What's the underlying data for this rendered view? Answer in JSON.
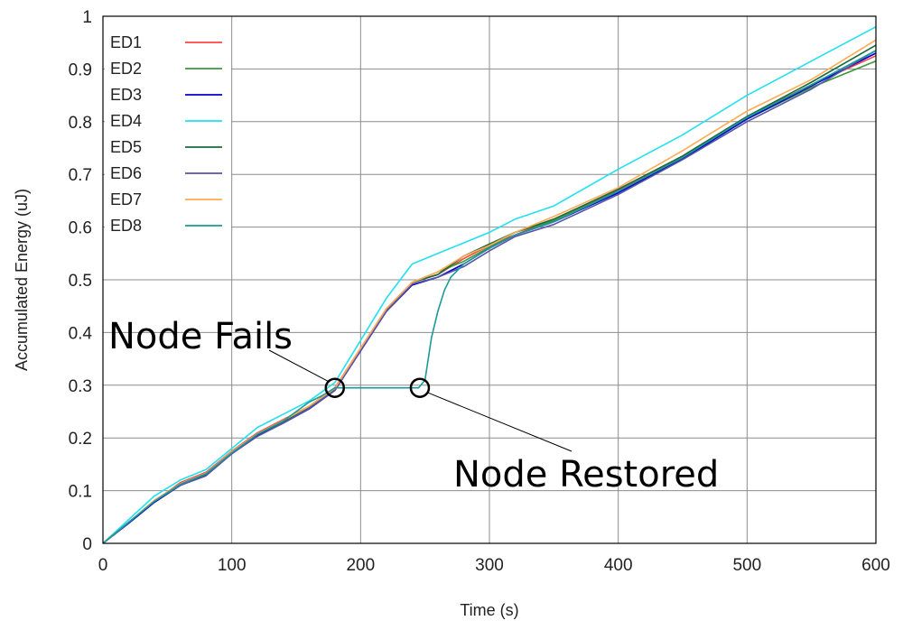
{
  "chart_data": {
    "type": "line",
    "xlabel": "Time (s)",
    "ylabel": "Accumulated Energy (uJ)",
    "xlim": [
      0,
      600
    ],
    "ylim": [
      0,
      1
    ],
    "xticks": [
      0,
      100,
      200,
      300,
      400,
      500,
      600
    ],
    "yticks": [
      0,
      0.1,
      0.2,
      0.3,
      0.4,
      0.5,
      0.6,
      0.7,
      0.8,
      0.9,
      1
    ],
    "grid": true,
    "legend_position": "top-left",
    "series": [
      {
        "name": "ED1",
        "color": "#ff4444",
        "points": [
          [
            0,
            0
          ],
          [
            20,
            0.04
          ],
          [
            40,
            0.08
          ],
          [
            60,
            0.115
          ],
          [
            80,
            0.135
          ],
          [
            100,
            0.175
          ],
          [
            120,
            0.21
          ],
          [
            140,
            0.235
          ],
          [
            160,
            0.26
          ],
          [
            180,
            0.295
          ],
          [
            200,
            0.37
          ],
          [
            220,
            0.445
          ],
          [
            240,
            0.495
          ],
          [
            260,
            0.51
          ],
          [
            280,
            0.54
          ],
          [
            300,
            0.565
          ],
          [
            320,
            0.585
          ],
          [
            350,
            0.615
          ],
          [
            400,
            0.67
          ],
          [
            450,
            0.735
          ],
          [
            500,
            0.81
          ],
          [
            550,
            0.87
          ],
          [
            600,
            0.925
          ]
        ]
      },
      {
        "name": "ED2",
        "color": "#3a9a3a",
        "points": [
          [
            0,
            0
          ],
          [
            20,
            0.04
          ],
          [
            40,
            0.08
          ],
          [
            60,
            0.11
          ],
          [
            80,
            0.132
          ],
          [
            100,
            0.172
          ],
          [
            120,
            0.205
          ],
          [
            140,
            0.232
          ],
          [
            160,
            0.258
          ],
          [
            180,
            0.293
          ],
          [
            200,
            0.368
          ],
          [
            220,
            0.443
          ],
          [
            240,
            0.495
          ],
          [
            260,
            0.515
          ],
          [
            280,
            0.535
          ],
          [
            300,
            0.562
          ],
          [
            320,
            0.59
          ],
          [
            350,
            0.612
          ],
          [
            400,
            0.668
          ],
          [
            450,
            0.73
          ],
          [
            500,
            0.805
          ],
          [
            550,
            0.865
          ],
          [
            600,
            0.915
          ]
        ]
      },
      {
        "name": "ED3",
        "color": "#0000cc",
        "points": [
          [
            0,
            0
          ],
          [
            20,
            0.038
          ],
          [
            40,
            0.078
          ],
          [
            60,
            0.11
          ],
          [
            80,
            0.13
          ],
          [
            100,
            0.17
          ],
          [
            120,
            0.205
          ],
          [
            140,
            0.228
          ],
          [
            160,
            0.255
          ],
          [
            180,
            0.29
          ],
          [
            200,
            0.365
          ],
          [
            220,
            0.44
          ],
          [
            240,
            0.49
          ],
          [
            260,
            0.505
          ],
          [
            280,
            0.53
          ],
          [
            300,
            0.56
          ],
          [
            320,
            0.585
          ],
          [
            350,
            0.61
          ],
          [
            400,
            0.665
          ],
          [
            450,
            0.73
          ],
          [
            500,
            0.805
          ],
          [
            550,
            0.868
          ],
          [
            600,
            0.93
          ]
        ]
      },
      {
        "name": "ED4",
        "color": "#22e0f0",
        "points": [
          [
            0,
            0
          ],
          [
            20,
            0.045
          ],
          [
            40,
            0.09
          ],
          [
            60,
            0.12
          ],
          [
            80,
            0.14
          ],
          [
            100,
            0.18
          ],
          [
            120,
            0.22
          ],
          [
            140,
            0.245
          ],
          [
            160,
            0.27
          ],
          [
            180,
            0.305
          ],
          [
            200,
            0.385
          ],
          [
            220,
            0.465
          ],
          [
            240,
            0.53
          ],
          [
            260,
            0.55
          ],
          [
            280,
            0.57
          ],
          [
            300,
            0.59
          ],
          [
            320,
            0.615
          ],
          [
            350,
            0.64
          ],
          [
            400,
            0.71
          ],
          [
            450,
            0.775
          ],
          [
            500,
            0.85
          ],
          [
            550,
            0.915
          ],
          [
            600,
            0.98
          ]
        ]
      },
      {
        "name": "ED5",
        "color": "#1a6a3a",
        "points": [
          [
            0,
            0
          ],
          [
            20,
            0.04
          ],
          [
            40,
            0.08
          ],
          [
            60,
            0.112
          ],
          [
            80,
            0.13
          ],
          [
            100,
            0.172
          ],
          [
            120,
            0.207
          ],
          [
            140,
            0.23
          ],
          [
            160,
            0.258
          ],
          [
            180,
            0.292
          ],
          [
            200,
            0.368
          ],
          [
            220,
            0.443
          ],
          [
            240,
            0.495
          ],
          [
            260,
            0.51
          ],
          [
            280,
            0.545
          ],
          [
            300,
            0.568
          ],
          [
            320,
            0.59
          ],
          [
            350,
            0.615
          ],
          [
            400,
            0.672
          ],
          [
            450,
            0.735
          ],
          [
            500,
            0.81
          ],
          [
            550,
            0.875
          ],
          [
            600,
            0.945
          ]
        ]
      },
      {
        "name": "ED6",
        "color": "#5555aa",
        "points": [
          [
            0,
            0
          ],
          [
            20,
            0.04
          ],
          [
            40,
            0.08
          ],
          [
            60,
            0.11
          ],
          [
            80,
            0.128
          ],
          [
            100,
            0.17
          ],
          [
            120,
            0.203
          ],
          [
            140,
            0.228
          ],
          [
            160,
            0.256
          ],
          [
            180,
            0.29
          ],
          [
            200,
            0.366
          ],
          [
            220,
            0.44
          ],
          [
            240,
            0.492
          ],
          [
            260,
            0.505
          ],
          [
            280,
            0.525
          ],
          [
            300,
            0.555
          ],
          [
            320,
            0.582
          ],
          [
            350,
            0.605
          ],
          [
            400,
            0.662
          ],
          [
            450,
            0.728
          ],
          [
            500,
            0.8
          ],
          [
            550,
            0.862
          ],
          [
            600,
            0.935
          ]
        ]
      },
      {
        "name": "ED7",
        "color": "#ffaa55",
        "points": [
          [
            0,
            0
          ],
          [
            20,
            0.04
          ],
          [
            40,
            0.082
          ],
          [
            60,
            0.113
          ],
          [
            80,
            0.133
          ],
          [
            100,
            0.174
          ],
          [
            120,
            0.208
          ],
          [
            140,
            0.233
          ],
          [
            160,
            0.26
          ],
          [
            180,
            0.294
          ],
          [
            200,
            0.37
          ],
          [
            220,
            0.445
          ],
          [
            240,
            0.495
          ],
          [
            260,
            0.515
          ],
          [
            280,
            0.545
          ],
          [
            300,
            0.565
          ],
          [
            320,
            0.59
          ],
          [
            350,
            0.62
          ],
          [
            400,
            0.675
          ],
          [
            450,
            0.745
          ],
          [
            500,
            0.82
          ],
          [
            550,
            0.88
          ],
          [
            600,
            0.955
          ]
        ]
      },
      {
        "name": "ED8",
        "color": "#1a9a9a",
        "points": [
          [
            0,
            0
          ],
          [
            20,
            0.04
          ],
          [
            40,
            0.08
          ],
          [
            60,
            0.112
          ],
          [
            80,
            0.132
          ],
          [
            100,
            0.172
          ],
          [
            120,
            0.207
          ],
          [
            140,
            0.232
          ],
          [
            150,
            0.25
          ],
          [
            160,
            0.268
          ],
          [
            170,
            0.28
          ],
          [
            180,
            0.295
          ],
          [
            245,
            0.295
          ],
          [
            250,
            0.31
          ],
          [
            255,
            0.39
          ],
          [
            260,
            0.44
          ],
          [
            265,
            0.48
          ],
          [
            270,
            0.505
          ],
          [
            280,
            0.53
          ],
          [
            300,
            0.56
          ],
          [
            320,
            0.585
          ],
          [
            350,
            0.61
          ],
          [
            400,
            0.668
          ],
          [
            450,
            0.732
          ],
          [
            500,
            0.808
          ],
          [
            550,
            0.87
          ],
          [
            600,
            0.935
          ]
        ]
      }
    ],
    "annotations": [
      {
        "text": "Node Fails",
        "at": [
          180,
          0.295
        ]
      },
      {
        "text": "Node Restored",
        "at": [
          246,
          0.295
        ]
      }
    ]
  }
}
